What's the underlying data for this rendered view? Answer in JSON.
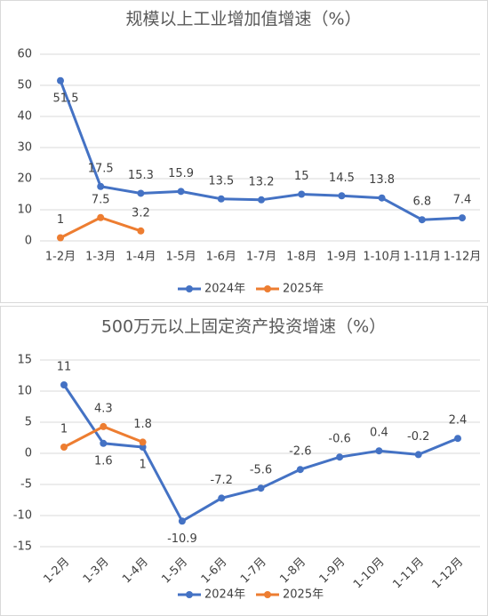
{
  "chart_data": [
    {
      "type": "line",
      "title": "规模以上工业增加值增速（%）",
      "categories": [
        "1-2月",
        "1-3月",
        "1-4月",
        "1-5月",
        "1-6月",
        "1-7月",
        "1-8月",
        "1-9月",
        "1-10月",
        "1-11月",
        "1-12月"
      ],
      "series": [
        {
          "name": "2024年",
          "color": "#4472c4",
          "values": [
            51.5,
            17.5,
            15.3,
            15.9,
            13.5,
            13.2,
            15,
            14.5,
            13.8,
            6.8,
            7.4
          ]
        },
        {
          "name": "2025年",
          "color": "#ed7d31",
          "values": [
            1,
            7.5,
            3.2,
            null,
            null,
            null,
            null,
            null,
            null,
            null,
            null
          ]
        }
      ],
      "ylim": [
        0,
        60
      ],
      "yticks": [
        0,
        10,
        20,
        30,
        40,
        50,
        60
      ],
      "grid": true,
      "legend": "bottom"
    },
    {
      "type": "line",
      "title": "500万元以上固定资产投资增速（%）",
      "categories": [
        "1-2月",
        "1-3月",
        "1-4月",
        "1-5月",
        "1-6月",
        "1-7月",
        "1-8月",
        "1-9月",
        "1-10月",
        "1-11月",
        "1-12月"
      ],
      "series": [
        {
          "name": "2024年",
          "color": "#4472c4",
          "values": [
            11,
            1.6,
            1,
            -10.9,
            -7.2,
            -5.6,
            -2.6,
            -0.6,
            0.4,
            -0.2,
            2.4
          ]
        },
        {
          "name": "2025年",
          "color": "#ed7d31",
          "values": [
            1,
            4.3,
            1.8,
            null,
            null,
            null,
            null,
            null,
            null,
            null,
            null
          ]
        }
      ],
      "ylim": [
        -15,
        15
      ],
      "yticks": [
        -15,
        -10,
        -5,
        0,
        5,
        10,
        15
      ],
      "grid": true,
      "legend": "bottom"
    }
  ]
}
